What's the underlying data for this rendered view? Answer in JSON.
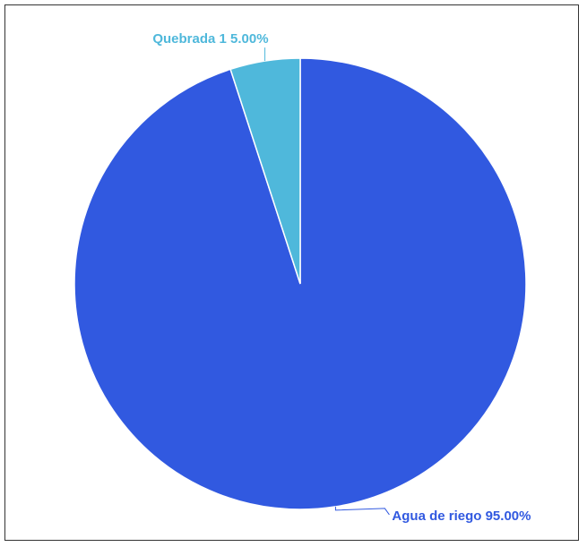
{
  "chart_data": {
    "type": "pie",
    "title": "",
    "start_angle_deg": 0,
    "direction": "clockwise",
    "slices": [
      {
        "name": "Agua de riego",
        "value": 95.0,
        "label": "Agua de riego 95.00%",
        "color": "#3159E0"
      },
      {
        "name": "Quebrada 1",
        "value": 5.0,
        "label": "Quebrada 1 5.00%",
        "color": "#4FB8DB"
      }
    ],
    "label_colors": {
      "Agua de riego": "#3159E0",
      "Quebrada 1": "#4FB8DB"
    },
    "legend": "none"
  }
}
